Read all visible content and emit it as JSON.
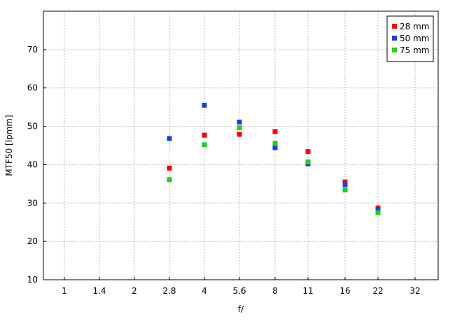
{
  "chart_data": {
    "type": "scatter",
    "title": "",
    "xlabel": "f/",
    "ylabel": "MTF50 [lpmm]",
    "categories": [
      "1",
      "1.4",
      "2",
      "2.8",
      "4",
      "5.6",
      "8",
      "11",
      "16",
      "22",
      "32"
    ],
    "ylim": [
      10,
      80
    ],
    "yticks": [
      10,
      20,
      30,
      40,
      50,
      60,
      70
    ],
    "grid": true,
    "legend_position": "top-right",
    "series": [
      {
        "name": "28 mm",
        "color": "#ff0000",
        "x": [
          "2.8",
          "4",
          "5.6",
          "8",
          "11",
          "16",
          "22"
        ],
        "values": [
          39.1,
          47.7,
          47.9,
          48.6,
          43.4,
          35.5,
          28.7
        ]
      },
      {
        "name": "50 mm",
        "color": "#1a3de8",
        "x": [
          "2.8",
          "4",
          "5.6",
          "8",
          "11",
          "16",
          "22"
        ],
        "values": [
          46.8,
          55.5,
          51.1,
          44.4,
          40.2,
          34.8,
          28.3
        ]
      },
      {
        "name": "75 mm",
        "color": "#22cc22",
        "x": [
          "2.8",
          "4",
          "5.6",
          "8",
          "11",
          "16",
          "22"
        ],
        "values": [
          36.1,
          45.2,
          49.6,
          45.5,
          40.7,
          33.4,
          27.5
        ]
      }
    ]
  }
}
